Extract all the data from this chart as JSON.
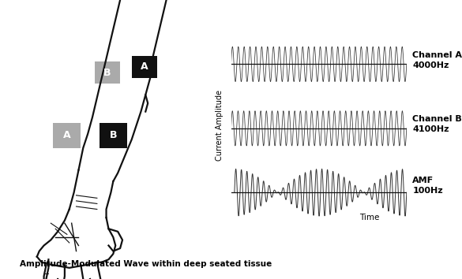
{
  "bg_color": "#ffffff",
  "wave_color": "#333333",
  "axis_color": "#111111",
  "channel_a_label": "Channel A\n4000Hz",
  "channel_b_label": "Channel B\n4100Hz",
  "amf_label": "AMF\n100Hz",
  "time_label": "Time",
  "y_label": "Current Amplitude",
  "caption": "Amplitude-Modulated Wave within deep seated tissue",
  "black_box_A_label": "A",
  "gray_box_B_label": "B",
  "black_box_B_label": "B",
  "gray_box_A_label": "A",
  "gray_color": "#aaaaaa",
  "black_color": "#111111"
}
